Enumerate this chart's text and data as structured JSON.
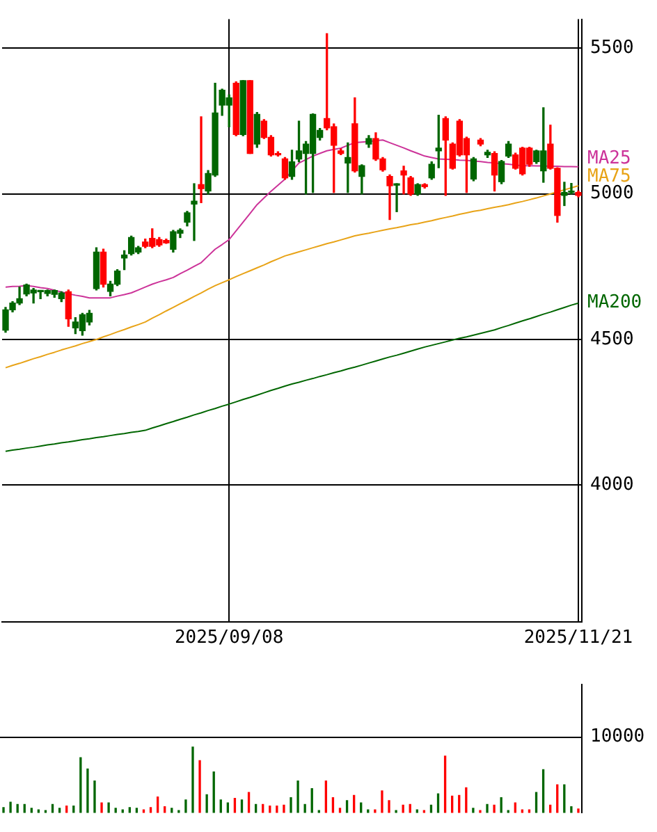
{
  "chart_data": [
    {
      "type": "candlestick",
      "grid": true,
      "ylim": [
        3530,
        5600
      ],
      "yticks": [
        4000,
        4500,
        5000,
        5500
      ],
      "categories": [
        null,
        null,
        null,
        null,
        null,
        null,
        null,
        null,
        null,
        null,
        null,
        null,
        null,
        null,
        null,
        null,
        null,
        null,
        null,
        null,
        null,
        null,
        null,
        null,
        null,
        null,
        null,
        null,
        null,
        null,
        null,
        null,
        "2025/09/08",
        null,
        null,
        null,
        null,
        null,
        null,
        null,
        null,
        null,
        null,
        null,
        null,
        null,
        null,
        null,
        null,
        null,
        null,
        null,
        null,
        null,
        null,
        null,
        null,
        null,
        null,
        null,
        null,
        null,
        null,
        null,
        null,
        null,
        null,
        null,
        null,
        null,
        null,
        null,
        null,
        null,
        null,
        null,
        null,
        null,
        null,
        null,
        null,
        null,
        "2025/11/21"
      ],
      "ohlc": [
        [
          4532,
          4610,
          4525,
          4602
        ],
        [
          4602,
          4630,
          4595,
          4625
        ],
        [
          4625,
          4680,
          4620,
          4640
        ],
        [
          4656,
          4690,
          4650,
          4687
        ],
        [
          4660,
          4675,
          4625,
          4670
        ],
        [
          4664,
          4668,
          4640,
          4665
        ],
        [
          4658,
          4670,
          4650,
          4668
        ],
        [
          4655,
          4670,
          4645,
          4668
        ],
        [
          4640,
          4664,
          4630,
          4660
        ],
        [
          4664,
          4670,
          4545,
          4571
        ],
        [
          4540,
          4575,
          4520,
          4560
        ],
        [
          4530,
          4590,
          4515,
          4585
        ],
        [
          4560,
          4600,
          4550,
          4590
        ],
        [
          4675,
          4815,
          4670,
          4800
        ],
        [
          4800,
          4810,
          4680,
          4690
        ],
        [
          4665,
          4700,
          4650,
          4690
        ],
        [
          4690,
          4740,
          4685,
          4735
        ],
        [
          4780,
          4805,
          4740,
          4790
        ],
        [
          4795,
          4855,
          4790,
          4850
        ],
        [
          4800,
          4820,
          4795,
          4815
        ],
        [
          4835,
          4845,
          4815,
          4820
        ],
        [
          4847,
          4880,
          4815,
          4820
        ],
        [
          4843,
          4850,
          4820,
          4825
        ],
        [
          4840,
          4845,
          4830,
          4832
        ],
        [
          4810,
          4875,
          4800,
          4870
        ],
        [
          4865,
          4880,
          4850,
          4875
        ],
        [
          4903,
          4940,
          4890,
          4935
        ],
        [
          4965,
          5035,
          4840,
          4975
        ],
        [
          5032,
          5265,
          4970,
          5018
        ],
        [
          5010,
          5080,
          5000,
          5070
        ],
        [
          5065,
          5380,
          5060,
          5278
        ],
        [
          5305,
          5360,
          5270,
          5356
        ],
        [
          5305,
          5340,
          5230,
          5330
        ],
        [
          5380,
          5385,
          5200,
          5204
        ],
        [
          5204,
          5389,
          5200,
          5389
        ],
        [
          5389,
          5389,
          5139,
          5139
        ],
        [
          5171,
          5280,
          5160,
          5273
        ],
        [
          5250,
          5255,
          5190,
          5194
        ],
        [
          5194,
          5200,
          5130,
          5134
        ],
        [
          5139,
          5145,
          5130,
          5134
        ],
        [
          5120,
          5125,
          5050,
          5055
        ],
        [
          5060,
          5150,
          5050,
          5110
        ],
        [
          5120,
          5250,
          5110,
          5148
        ],
        [
          5139,
          5180,
          5000,
          5171
        ],
        [
          5139,
          5275,
          5005,
          5273
        ],
        [
          5194,
          5225,
          5185,
          5218
        ],
        [
          5259,
          5550,
          5220,
          5227
        ],
        [
          5231,
          5240,
          5005,
          5167
        ],
        [
          5148,
          5155,
          5135,
          5139
        ],
        [
          5106,
          5175,
          5005,
          5125
        ],
        [
          5241,
          5330,
          5075,
          5079
        ],
        [
          5060,
          5100,
          5000,
          5097
        ],
        [
          5171,
          5200,
          5160,
          5190
        ],
        [
          5190,
          5210,
          5115,
          5120
        ],
        [
          5120,
          5125,
          5078,
          5083
        ],
        [
          5060,
          5065,
          4912,
          5028
        ],
        [
          5030,
          5035,
          4939,
          5034
        ],
        [
          5079,
          5095,
          5000,
          5065
        ],
        [
          5055,
          5060,
          4995,
          5000
        ],
        [
          5000,
          5035,
          4995,
          5032
        ],
        [
          5032,
          5035,
          5020,
          5025
        ],
        [
          5055,
          5110,
          5050,
          5102
        ],
        [
          5148,
          5270,
          5090,
          5157
        ],
        [
          5259,
          5265,
          4995,
          5185
        ],
        [
          5171,
          5175,
          5085,
          5088
        ],
        [
          5250,
          5255,
          5130,
          5134
        ],
        [
          5190,
          5195,
          5005,
          5134
        ],
        [
          5051,
          5125,
          5045,
          5120
        ],
        [
          5185,
          5190,
          5165,
          5171
        ],
        [
          5134,
          5150,
          5125,
          5143
        ],
        [
          5139,
          5145,
          5010,
          5065
        ],
        [
          5042,
          5115,
          5035,
          5111
        ],
        [
          5130,
          5180,
          5125,
          5171
        ],
        [
          5134,
          5140,
          5085,
          5088
        ],
        [
          5157,
          5160,
          5065,
          5069
        ],
        [
          5157,
          5160,
          5095,
          5102
        ],
        [
          5111,
          5150,
          5105,
          5148
        ],
        [
          5079,
          5296,
          5040,
          5148
        ],
        [
          5171,
          5236,
          5085,
          5088
        ],
        [
          5088,
          5090,
          4903,
          4926
        ],
        [
          4995,
          5040,
          4960,
          5005
        ],
        [
          5005,
          5036,
          5000,
          5008
        ],
        [
          5005,
          5010,
          4990,
          4995
        ]
      ],
      "colors": [
        "#006600",
        "#006600",
        "#006600",
        "#006600",
        "#006600",
        "#006600",
        "#006600",
        "#006600",
        "#006600",
        "#ff0000",
        "#006600",
        "#006600",
        "#006600",
        "#006600",
        "#ff0000",
        "#006600",
        "#006600",
        "#006600",
        "#006600",
        "#006600",
        "#ff0000",
        "#ff0000",
        "#ff0000",
        "#ff0000",
        "#006600",
        "#006600",
        "#006600",
        "#006600",
        "#ff0000",
        "#006600",
        "#006600",
        "#006600",
        "#006600",
        "#ff0000",
        "#006600",
        "#ff0000",
        "#006600",
        "#ff0000",
        "#ff0000",
        "#ff0000",
        "#ff0000",
        "#006600",
        "#006600",
        "#006600",
        "#006600",
        "#006600",
        "#ff0000",
        "#ff0000",
        "#ff0000",
        "#006600",
        "#ff0000",
        "#006600",
        "#006600",
        "#ff0000",
        "#ff0000",
        "#ff0000",
        "#006600",
        "#ff0000",
        "#ff0000",
        "#006600",
        "#ff0000",
        "#006600",
        "#006600",
        "#ff0000",
        "#ff0000",
        "#ff0000",
        "#ff0000",
        "#006600",
        "#ff0000",
        "#006600",
        "#ff0000",
        "#006600",
        "#006600",
        "#ff0000",
        "#ff0000",
        "#ff0000",
        "#006600",
        "#006600",
        "#ff0000",
        "#ff0000",
        "#006600",
        "#006600",
        "#ff0000"
      ],
      "series": [
        {
          "type": "line",
          "name": "MA25",
          "color": "#cc3399",
          "values": [
            4680,
            4682,
            4683,
            4685,
            4682,
            4678,
            4675,
            4669,
            4663,
            4657,
            4652,
            4648,
            4643,
            4643,
            4643,
            4643,
            4649,
            4654,
            4660,
            4670,
            4680,
            4690,
            4698,
            4705,
            4713,
            4726,
            4738,
            4751,
            4764,
            4787,
            4810,
            4826,
            4843,
            4873,
            4903,
            4933,
            4963,
            4986,
            5009,
            5030,
            5051,
            5079,
            5106,
            5118,
            5130,
            5139,
            5148,
            5153,
            5157,
            5167,
            5176,
            5178,
            5180,
            5183,
            5185,
            5176,
            5167,
            5158,
            5148,
            5139,
            5130,
            5125,
            5120,
            5119,
            5118,
            5116,
            5115,
            5113,
            5111,
            5108,
            5106,
            5104,
            5102,
            5099,
            5097,
            5097,
            5096,
            5096,
            5095,
            5095,
            5094,
            5094,
            5093
          ]
        },
        {
          "type": "line",
          "name": "MA75",
          "color": "#e8a317",
          "values": [
            4403,
            4411,
            4418,
            4426,
            4434,
            4441,
            4449,
            4456,
            4464,
            4471,
            4478,
            4486,
            4493,
            4500,
            4509,
            4517,
            4526,
            4534,
            4543,
            4551,
            4560,
            4573,
            4585,
            4598,
            4610,
            4623,
            4635,
            4648,
            4660,
            4673,
            4685,
            4695,
            4705,
            4716,
            4726,
            4736,
            4746,
            4756,
            4767,
            4777,
            4787,
            4794,
            4801,
            4808,
            4815,
            4822,
            4829,
            4835,
            4842,
            4849,
            4856,
            4861,
            4865,
            4870,
            4875,
            4880,
            4884,
            4889,
            4894,
            4898,
            4903,
            4908,
            4914,
            4919,
            4924,
            4930,
            4935,
            4940,
            4944,
            4949,
            4954,
            4958,
            4963,
            4969,
            4974,
            4980,
            4986,
            4993,
            5000,
            5007,
            5014,
            5021,
            5028
          ]
        },
        {
          "type": "line",
          "name": "MA200",
          "color": "#006600",
          "values": [
            4116,
            4120,
            4123,
            4127,
            4130,
            4134,
            4138,
            4141,
            4145,
            4148,
            4152,
            4156,
            4159,
            4163,
            4166,
            4170,
            4174,
            4177,
            4181,
            4184,
            4188,
            4196,
            4203,
            4211,
            4218,
            4226,
            4233,
            4241,
            4248,
            4256,
            4263,
            4271,
            4278,
            4286,
            4294,
            4301,
            4309,
            4317,
            4325,
            4332,
            4340,
            4347,
            4353,
            4360,
            4366,
            4373,
            4379,
            4386,
            4392,
            4399,
            4405,
            4412,
            4419,
            4426,
            4433,
            4440,
            4446,
            4453,
            4460,
            4467,
            4474,
            4480,
            4486,
            4492,
            4498,
            4504,
            4509,
            4515,
            4521,
            4527,
            4533,
            4541,
            4548,
            4556,
            4564,
            4571,
            4579,
            4587,
            4594,
            4602,
            4610,
            4618,
            4625
          ]
        }
      ]
    },
    {
      "type": "bar",
      "grid": "y",
      "tick_labels": "y",
      "ylim": [
        0,
        17000
      ],
      "yticks": [
        10000
      ],
      "categories": [
        null,
        null,
        null,
        null,
        null,
        null,
        null,
        null,
        null,
        null,
        null,
        null,
        null,
        null,
        null,
        null,
        null,
        null,
        null,
        null,
        null,
        null,
        null,
        null,
        null,
        null,
        null,
        null,
        null,
        null,
        null,
        null,
        null,
        null,
        null,
        null,
        null,
        null,
        null,
        null,
        null,
        null,
        null,
        null,
        null,
        null,
        null,
        null,
        null,
        null,
        null,
        null,
        null,
        null,
        null,
        null,
        null,
        null,
        null,
        null,
        null,
        null,
        null,
        null,
        null,
        null,
        null,
        null,
        null,
        null,
        null,
        null,
        null,
        null,
        null,
        null,
        null,
        null,
        null,
        null,
        null,
        null,
        null
      ],
      "values": [
        700,
        1400,
        1100,
        1100,
        600,
        400,
        300,
        1100,
        600,
        900,
        900,
        7300,
        5800,
        4200,
        1300,
        1300,
        600,
        400,
        700,
        600,
        400,
        700,
        2100,
        800,
        600,
        300,
        1700,
        8700,
        6900,
        2400,
        5400,
        1700,
        1300,
        1900,
        1700,
        2700,
        1100,
        1100,
        900,
        900,
        1000,
        2000,
        4200,
        1100,
        3200,
        300,
        4200,
        2000,
        600,
        1600,
        2300,
        1300,
        400,
        400,
        2900,
        1600,
        300,
        1000,
        1100,
        400,
        300,
        1000,
        2500,
        7500,
        2200,
        2300,
        3300,
        600,
        300,
        1100,
        1000,
        2000,
        300,
        1300,
        400,
        400,
        2700,
        5700,
        1000,
        3700,
        3700,
        800,
        500
      ],
      "colors": [
        "#006600",
        "#006600",
        "#006600",
        "#006600",
        "#006600",
        "#006600",
        "#006600",
        "#006600",
        "#006600",
        "#ff0000",
        "#006600",
        "#006600",
        "#006600",
        "#006600",
        "#ff0000",
        "#006600",
        "#006600",
        "#006600",
        "#006600",
        "#006600",
        "#ff0000",
        "#ff0000",
        "#ff0000",
        "#ff0000",
        "#006600",
        "#006600",
        "#006600",
        "#006600",
        "#ff0000",
        "#006600",
        "#006600",
        "#006600",
        "#006600",
        "#ff0000",
        "#006600",
        "#ff0000",
        "#006600",
        "#ff0000",
        "#ff0000",
        "#ff0000",
        "#ff0000",
        "#006600",
        "#006600",
        "#006600",
        "#006600",
        "#006600",
        "#ff0000",
        "#ff0000",
        "#ff0000",
        "#006600",
        "#ff0000",
        "#006600",
        "#006600",
        "#ff0000",
        "#ff0000",
        "#ff0000",
        "#006600",
        "#ff0000",
        "#ff0000",
        "#006600",
        "#ff0000",
        "#006600",
        "#006600",
        "#ff0000",
        "#ff0000",
        "#ff0000",
        "#ff0000",
        "#006600",
        "#ff0000",
        "#006600",
        "#ff0000",
        "#006600",
        "#006600",
        "#ff0000",
        "#ff0000",
        "#ff0000",
        "#006600",
        "#006600",
        "#ff0000",
        "#ff0000",
        "#006600",
        "#006600",
        "#ff0000"
      ]
    }
  ]
}
